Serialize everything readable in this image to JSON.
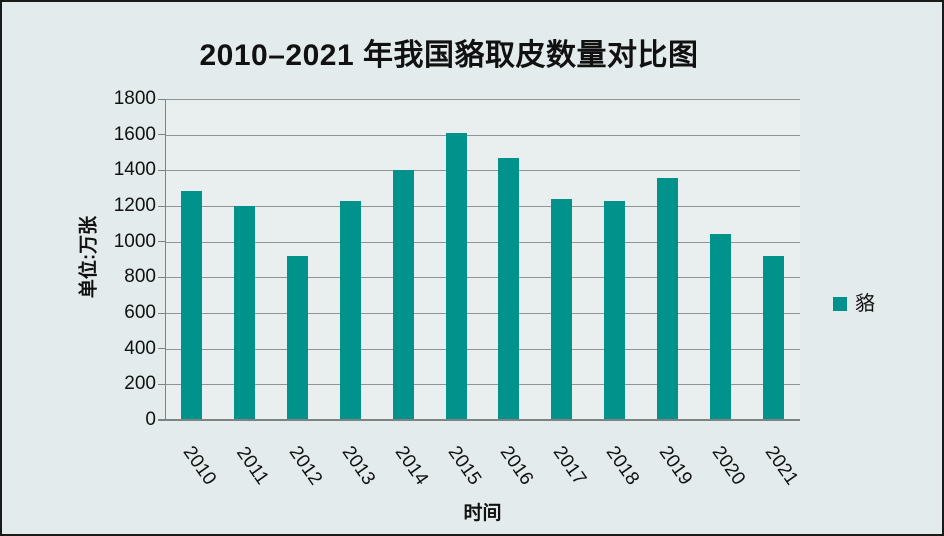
{
  "page": {
    "background": "#e4ebec",
    "border_color": "#1a1a1a"
  },
  "chart": {
    "title": "2010–2021 年我国貉取皮数量对比图",
    "y_axis_title": "单位:万张",
    "x_axis_title": "时间",
    "legend": {
      "label": "貉",
      "swatch_color": "#00928b"
    }
  },
  "chart_data": {
    "type": "bar",
    "title": "2010–2021 年我国貉取皮数量对比图",
    "xlabel": "时间",
    "ylabel": "单位:万张",
    "categories": [
      "2010",
      "2011",
      "2012",
      "2013",
      "2014",
      "2015",
      "2016",
      "2017",
      "2018",
      "2019",
      "2020",
      "2021"
    ],
    "series": [
      {
        "name": "貉",
        "values": [
          1285,
          1200,
          920,
          1230,
          1400,
          1610,
          1470,
          1240,
          1230,
          1355,
          1045,
          920
        ]
      }
    ],
    "ylim": [
      0,
      1800
    ],
    "ytick_interval": 200,
    "grid": true,
    "legend_position": "right",
    "bar_color": "#00928b",
    "plot_background": "#e9efef",
    "gridline_color": "#8f9494",
    "axis_color": "#7d8383"
  }
}
